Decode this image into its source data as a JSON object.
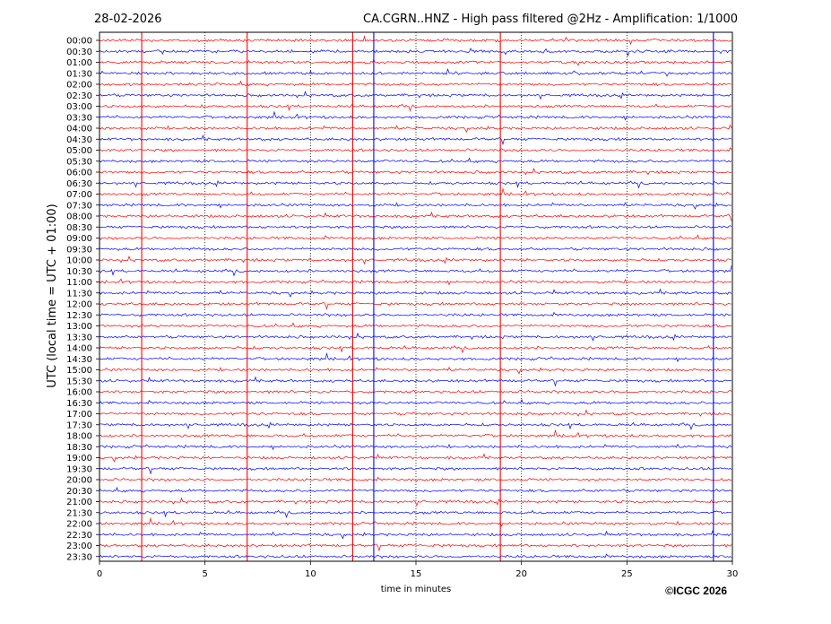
{
  "chart_data": {
    "type": "line",
    "date": "28-02-2026",
    "title": "CA.CGRN..HNZ - High pass filtered @2Hz - Amplification: 1/1000",
    "ylabel": "UTC (local time = UTC + 01:00)",
    "xlabel": "time in minutes",
    "copyright": "©ICGC 2026",
    "xlim": [
      0,
      30
    ],
    "x_ticks": [
      0,
      5,
      10,
      15,
      20,
      25,
      30
    ],
    "grid": "dotted vertical at x ticks",
    "row_labels": [
      "00:00",
      "00:30",
      "01:00",
      "01:30",
      "02:00",
      "02:30",
      "03:00",
      "03:30",
      "04:00",
      "04:30",
      "05:00",
      "05:30",
      "06:00",
      "06:30",
      "07:00",
      "07:30",
      "08:00",
      "08:30",
      "09:00",
      "09:30",
      "10:00",
      "10:30",
      "11:00",
      "11:30",
      "12:00",
      "12:30",
      "13:00",
      "13:30",
      "14:00",
      "14:30",
      "15:00",
      "15:30",
      "16:00",
      "16:30",
      "17:00",
      "17:30",
      "18:00",
      "18:30",
      "19:00",
      "19:30",
      "20:00",
      "20:30",
      "21:00",
      "21:30",
      "22:00",
      "22:30",
      "23:00",
      "23:30"
    ],
    "colors": {
      "even_rows": "#ff0000",
      "odd_rows": "#0000ff"
    },
    "vertical_event_lines": [
      {
        "x": 2.0,
        "color": "#ff0000"
      },
      {
        "x": 7.0,
        "color": "#ff0000"
      },
      {
        "x": 12.0,
        "color": "#ff0000"
      },
      {
        "x": 13.0,
        "color": "#0000ff"
      },
      {
        "x": 19.0,
        "color": "#ff0000"
      },
      {
        "x": 29.1,
        "color": "#0000ff"
      }
    ]
  }
}
